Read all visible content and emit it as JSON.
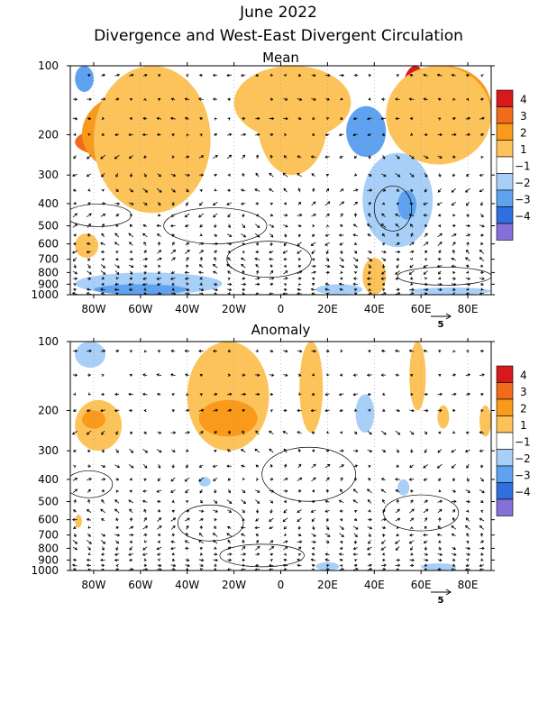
{
  "figure": {
    "title": "June 2022",
    "subtitle": "Divergence and West-East Divergent Circulation"
  },
  "chart_data": [
    {
      "type": "heatmap",
      "title": "Mean",
      "x_ticks": [
        "80W",
        "60W",
        "40W",
        "20W",
        "0",
        "20E",
        "40E",
        "60E",
        "80E"
      ],
      "x_tick_values": [
        -80,
        -60,
        -40,
        -20,
        0,
        20,
        40,
        60,
        80
      ],
      "xlim": [
        -90,
        90
      ],
      "y_ticks": [
        "100",
        "200",
        "300",
        "400",
        "500",
        "600",
        "700",
        "800",
        "900",
        "1000"
      ],
      "y_tick_values": [
        100,
        200,
        300,
        400,
        500,
        600,
        700,
        800,
        900,
        1000
      ],
      "ylim": [
        1000,
        100
      ],
      "y_scale": "log",
      "vector_ref_label": "5",
      "colorbar": {
        "labels": [
          "4",
          "3",
          "2",
          "1",
          "-1",
          "-2",
          "-3",
          "-4"
        ],
        "colors": [
          "#d7191c",
          "#f06b1b",
          "#f99a1c",
          "#fcc35a",
          "#ffffff",
          "#a7cff7",
          "#5fa2ef",
          "#2f6fdf",
          "#8470d8"
        ]
      },
      "fields": [
        {
          "lon": [
            -88,
            -52
          ],
          "p": [
            185,
            250
          ],
          "level": 3
        },
        {
          "lon": [
            -85,
            -40
          ],
          "p": [
            130,
            300
          ],
          "level": 2
        },
        {
          "lon": [
            -80,
            -30
          ],
          "p": [
            100,
            440
          ],
          "level": 1
        },
        {
          "lon": [
            -88,
            -78
          ],
          "p": [
            540,
            690
          ],
          "level": 1
        },
        {
          "lon": [
            -20,
            30
          ],
          "p": [
            100,
            210
          ],
          "level": 1
        },
        {
          "lon": [
            -10,
            20
          ],
          "p": [
            100,
            300
          ],
          "level": 1
        },
        {
          "lon": [
            52,
            63
          ],
          "p": [
            100,
            175
          ],
          "level": 4
        },
        {
          "lon": [
            50,
            90
          ],
          "p": [
            100,
            230
          ],
          "level": 2
        },
        {
          "lon": [
            45,
            90
          ],
          "p": [
            100,
            270
          ],
          "level": 1
        },
        {
          "lon": [
            35,
            45
          ],
          "p": [
            690,
            1000
          ],
          "level": 1
        },
        {
          "lon": [
            -88,
            -80
          ],
          "p": [
            100,
            130
          ],
          "level": -2
        },
        {
          "lon": [
            28,
            45
          ],
          "p": [
            150,
            250
          ],
          "level": -2
        },
        {
          "lon": [
            35,
            65
          ],
          "p": [
            240,
            620
          ],
          "level": -1
        },
        {
          "lon": [
            50,
            58
          ],
          "p": [
            350,
            470
          ],
          "level": -2
        },
        {
          "lon": [
            -88,
            -25
          ],
          "p": [
            800,
            1000
          ],
          "level": -1
        },
        {
          "lon": [
            -80,
            -40
          ],
          "p": [
            900,
            1000
          ],
          "level": -2
        },
        {
          "lon": [
            15,
            35
          ],
          "p": [
            900,
            1000
          ],
          "level": -1
        },
        {
          "lon": [
            55,
            90
          ],
          "p": [
            930,
            1000
          ],
          "level": -1
        }
      ]
    },
    {
      "type": "heatmap",
      "title": "Anomaly",
      "x_ticks": [
        "80W",
        "60W",
        "40W",
        "20W",
        "0",
        "20E",
        "40E",
        "60E",
        "80E"
      ],
      "x_tick_values": [
        -80,
        -60,
        -40,
        -20,
        0,
        20,
        40,
        60,
        80
      ],
      "xlim": [
        -90,
        90
      ],
      "y_ticks": [
        "100",
        "200",
        "300",
        "400",
        "500",
        "600",
        "700",
        "800",
        "900",
        "1000"
      ],
      "y_tick_values": [
        100,
        200,
        300,
        400,
        500,
        600,
        700,
        800,
        900,
        1000
      ],
      "ylim": [
        1000,
        100
      ],
      "y_scale": "log",
      "vector_ref_label": "5",
      "colorbar": {
        "labels": [
          "4",
          "3",
          "2",
          "1",
          "-1",
          "-2",
          "-3",
          "-4"
        ],
        "colors": [
          "#d7191c",
          "#f06b1b",
          "#f99a1c",
          "#fcc35a",
          "#ffffff",
          "#a7cff7",
          "#5fa2ef",
          "#2f6fdf",
          "#8470d8"
        ]
      },
      "fields": [
        {
          "lon": [
            -88,
            -68
          ],
          "p": [
            180,
            300
          ],
          "level": 1
        },
        {
          "lon": [
            -85,
            -75
          ],
          "p": [
            200,
            240
          ],
          "level": 2
        },
        {
          "lon": [
            -40,
            -5
          ],
          "p": [
            100,
            300
          ],
          "level": 1
        },
        {
          "lon": [
            -35,
            -10
          ],
          "p": [
            180,
            260
          ],
          "level": 2
        },
        {
          "lon": [
            8,
            18
          ],
          "p": [
            100,
            250
          ],
          "level": 1
        },
        {
          "lon": [
            55,
            62
          ],
          "p": [
            100,
            200
          ],
          "level": 1
        },
        {
          "lon": [
            67,
            72
          ],
          "p": [
            190,
            240
          ],
          "level": 1
        },
        {
          "lon": [
            85,
            90
          ],
          "p": [
            190,
            260
          ],
          "level": 1
        },
        {
          "lon": [
            -88,
            -85
          ],
          "p": [
            570,
            650
          ],
          "level": 1
        },
        {
          "lon": [
            -88,
            -75
          ],
          "p": [
            100,
            130
          ],
          "level": -1
        },
        {
          "lon": [
            32,
            40
          ],
          "p": [
            170,
            250
          ],
          "level": -1
        },
        {
          "lon": [
            -35,
            -30
          ],
          "p": [
            390,
            430
          ],
          "level": -1
        },
        {
          "lon": [
            50,
            55
          ],
          "p": [
            400,
            470
          ],
          "level": -1
        },
        {
          "lon": [
            15,
            25
          ],
          "p": [
            920,
            1000
          ],
          "level": -1
        },
        {
          "lon": [
            60,
            75
          ],
          "p": [
            930,
            1000
          ],
          "level": -1
        }
      ]
    }
  ]
}
